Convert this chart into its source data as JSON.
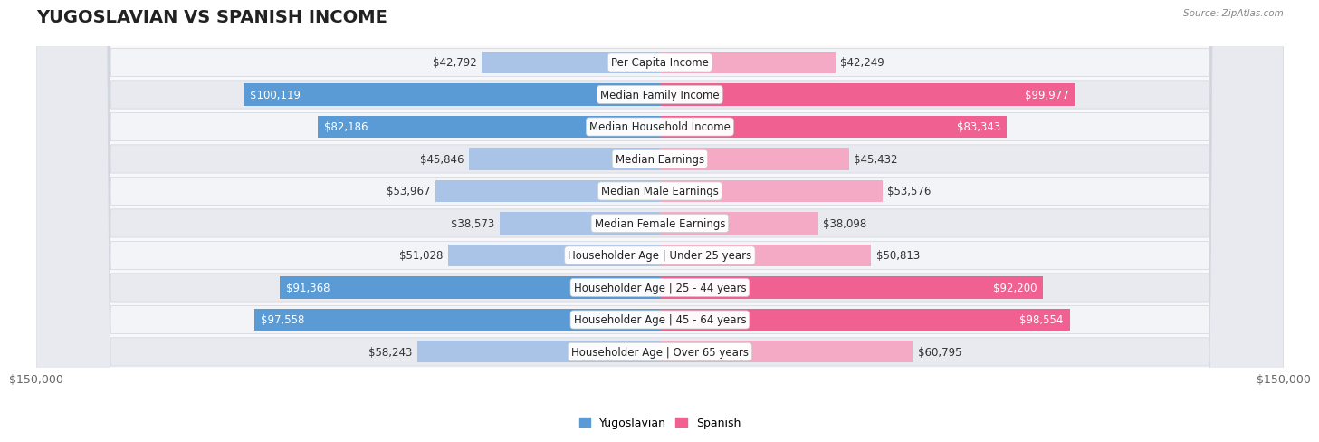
{
  "title": "YUGOSLAVIAN VS SPANISH INCOME",
  "source": "Source: ZipAtlas.com",
  "categories": [
    "Per Capita Income",
    "Median Family Income",
    "Median Household Income",
    "Median Earnings",
    "Median Male Earnings",
    "Median Female Earnings",
    "Householder Age | Under 25 years",
    "Householder Age | 25 - 44 years",
    "Householder Age | 45 - 64 years",
    "Householder Age | Over 65 years"
  ],
  "yugoslavian_values": [
    42792,
    100119,
    82186,
    45846,
    53967,
    38573,
    51028,
    91368,
    97558,
    58243
  ],
  "spanish_values": [
    42249,
    99977,
    83343,
    45432,
    53576,
    38098,
    50813,
    92200,
    98554,
    60795
  ],
  "yugoslavian_labels": [
    "$42,792",
    "$100,119",
    "$82,186",
    "$45,846",
    "$53,967",
    "$38,573",
    "$51,028",
    "$91,368",
    "$97,558",
    "$58,243"
  ],
  "spanish_labels": [
    "$42,249",
    "$99,977",
    "$83,343",
    "$45,432",
    "$53,576",
    "$38,098",
    "$50,813",
    "$92,200",
    "$98,554",
    "$60,795"
  ],
  "max_value": 150000,
  "yugo_color_light": "#aac4e8",
  "yugo_color_dark": "#5b9bd5",
  "spanish_color_light": "#f4aac4",
  "spanish_color_dark": "#f06090",
  "row_light_color": "#f2f4f8",
  "row_dark_color": "#e8eaf0",
  "row_outline_color": "#d0d4dc",
  "title_fontsize": 14,
  "label_fontsize": 8.5,
  "tick_fontsize": 9,
  "legend_fontsize": 9,
  "yugo_threshold": 65000,
  "span_threshold": 65000
}
